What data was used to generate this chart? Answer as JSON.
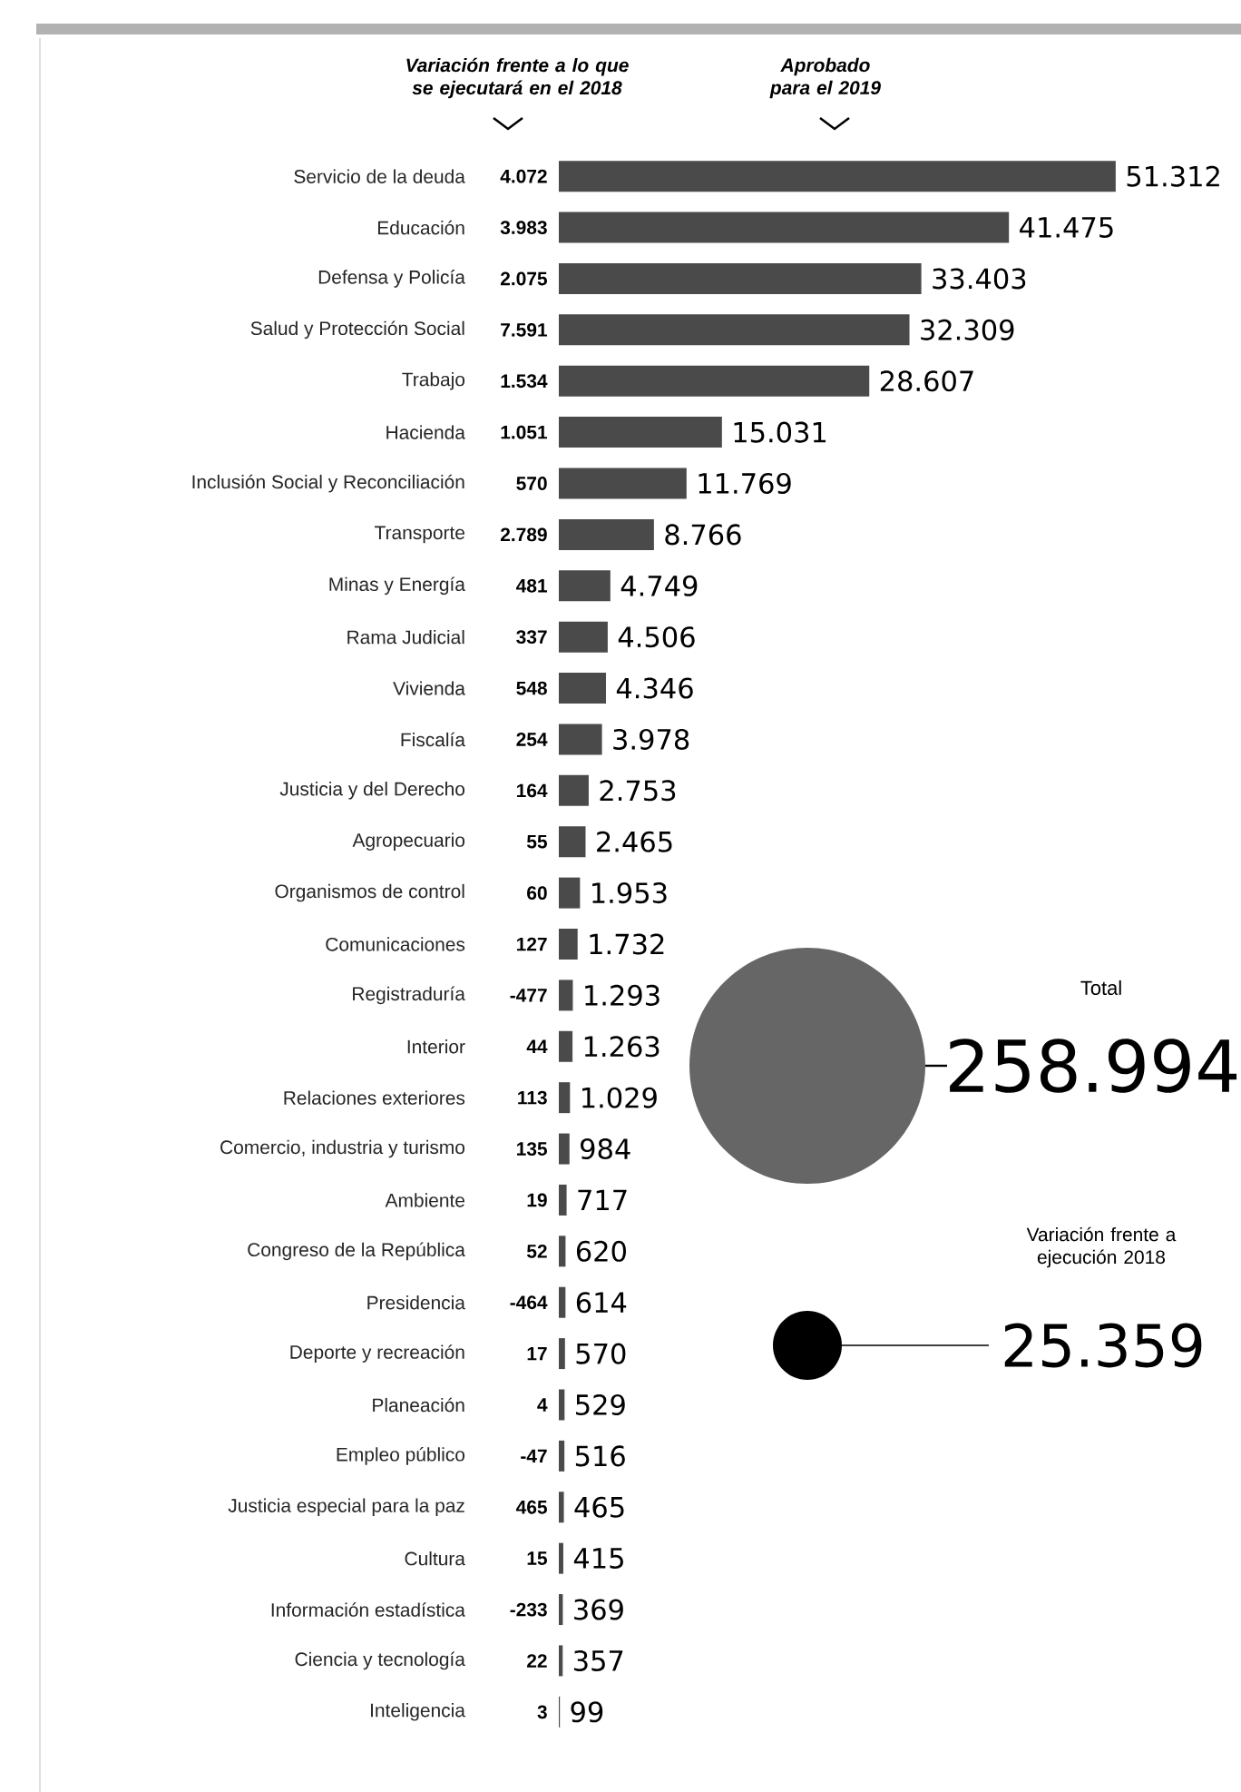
{
  "chart_data": {
    "type": "bar",
    "orientation": "horizontal",
    "color": "#4a4a4a",
    "categories": [
      "Servicio de la deuda",
      "Educación",
      "Defensa y Policía",
      "Salud y Protección Social",
      "Trabajo",
      "Hacienda",
      "Inclusión Social y Reconciliación",
      "Transporte",
      "Minas y Energía",
      "Rama Judicial",
      "Vivienda",
      "Fiscalía",
      "Justicia y del Derecho",
      "Agropecuario",
      "Organismos de control",
      "Comunicaciones",
      "Registraduría",
      "Interior",
      "Relaciones exteriores",
      "Comercio, industria y turismo",
      "Ambiente",
      "Congreso de la República",
      "Presidencia",
      "Deporte y recreación",
      "Planeación",
      "Empleo público",
      "Justicia especial para la paz",
      "Cultura",
      "Información estadística",
      "Ciencia y tecnología",
      "Inteligencia"
    ],
    "values": [
      51312,
      41475,
      33403,
      32309,
      28607,
      15031,
      11769,
      8766,
      4749,
      4506,
      4346,
      3978,
      2753,
      2465,
      1953,
      1732,
      1293,
      1263,
      1029,
      984,
      717,
      620,
      614,
      570,
      529,
      516,
      465,
      415,
      369,
      357,
      99
    ],
    "value_labels": [
      "51.312",
      "41.475",
      "33.403",
      "32.309",
      "28.607",
      "15.031",
      "11.769",
      "8.766",
      "4.749",
      "4.506",
      "4.346",
      "3.978",
      "2.753",
      "2.465",
      "1.953",
      "1.732",
      "1.293",
      "1.263",
      "1.029",
      "984",
      "717",
      "620",
      "614",
      "570",
      "529",
      "516",
      "465",
      "415",
      "369",
      "357",
      "99"
    ],
    "annotations": [
      "Variación frente a lo que se ejecutará en el 2018",
      "Aprobado para el 2019",
      "Total",
      "258.994",
      "Variación frente a ejecución 2018",
      "25.359",
      "4.072",
      "3.983",
      "2.075",
      "7.591",
      "1.534",
      "1.051",
      "570",
      "2.789",
      "481",
      "337",
      "548",
      "254",
      "164",
      "55",
      "60",
      "127",
      "-477",
      "44",
      "113",
      "135",
      "19",
      "52",
      "-464",
      "17",
      "4",
      "-47",
      "465",
      "15",
      "-233",
      "22",
      "3"
    ]
  }
}
